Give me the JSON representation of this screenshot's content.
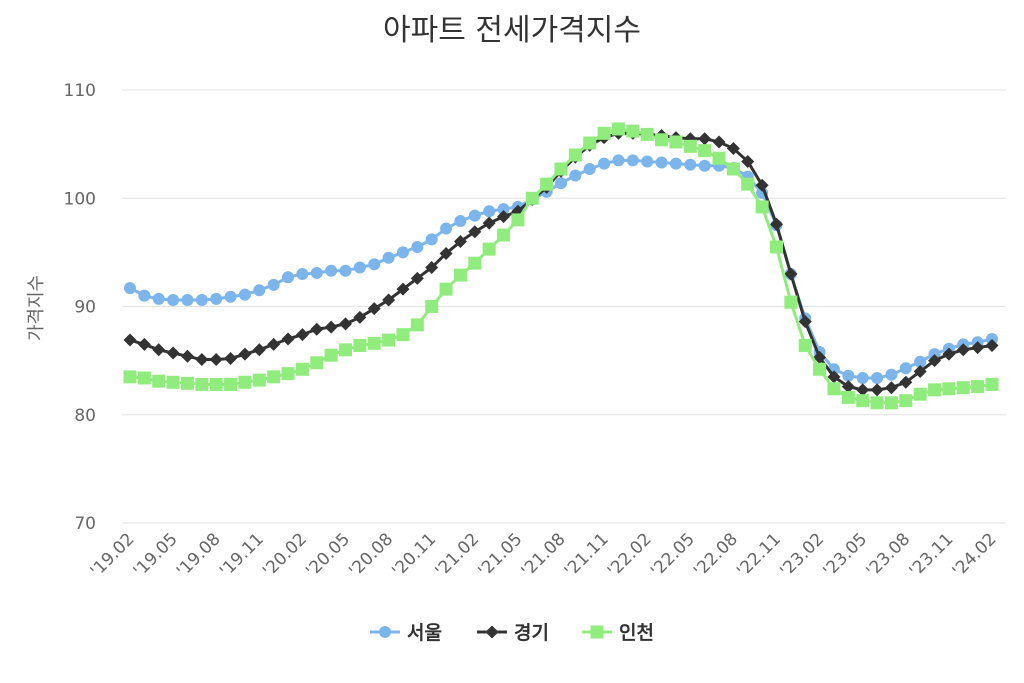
{
  "chart_data": {
    "type": "line",
    "title": "아파트 전세가격지수",
    "ylabel": "가격지수",
    "xlabel": "",
    "ylim": [
      70,
      110
    ],
    "yticks": [
      70,
      80,
      90,
      100,
      110
    ],
    "x": [
      "'19.02",
      "'19.03",
      "'19.04",
      "'19.05",
      "'19.06",
      "'19.07",
      "'19.08",
      "'19.09",
      "'19.10",
      "'19.11",
      "'19.12",
      "'20.01",
      "'20.02",
      "'20.03",
      "'20.04",
      "'20.05",
      "'20.06",
      "'20.07",
      "'20.08",
      "'20.09",
      "'20.10",
      "'20.11",
      "'20.12",
      "'21.01",
      "'21.02",
      "'21.03",
      "'21.04",
      "'21.05",
      "'21.06",
      "'21.07",
      "'21.08",
      "'21.09",
      "'21.10",
      "'21.11",
      "'21.12",
      "'22.01",
      "'22.02",
      "'22.03",
      "'22.04",
      "'22.05",
      "'22.06",
      "'22.07",
      "'22.08",
      "'22.09",
      "'22.10",
      "'22.11",
      "'22.12",
      "'23.01",
      "'23.02",
      "'23.03",
      "'23.04",
      "'23.05",
      "'23.06",
      "'23.07",
      "'23.08",
      "'23.09",
      "'23.10",
      "'23.11",
      "'23.12",
      "'24.01",
      "'24.02"
    ],
    "xtick_labels": [
      "'19.02",
      "'19.05",
      "'19.08",
      "'19.11",
      "'20.02",
      "'20.05",
      "'20.08",
      "'20.11",
      "'21.02",
      "'21.05",
      "'21.08",
      "'21.11",
      "'22.02",
      "'22.05",
      "'22.08",
      "'22.11",
      "'23.02",
      "'23.05",
      "'23.08",
      "'23.11",
      "'24.02"
    ],
    "grid": true,
    "legend_position": "bottom",
    "series": [
      {
        "name": "서울",
        "color": "#7cb5ec",
        "marker": "circle",
        "values": [
          91.7,
          91.0,
          90.7,
          90.6,
          90.6,
          90.6,
          90.7,
          90.9,
          91.1,
          91.5,
          92.0,
          92.7,
          93.0,
          93.1,
          93.3,
          93.3,
          93.6,
          93.9,
          94.5,
          95.0,
          95.5,
          96.2,
          97.2,
          97.9,
          98.4,
          98.8,
          99.0,
          99.2,
          99.9,
          100.6,
          101.4,
          102.1,
          102.7,
          103.2,
          103.5,
          103.5,
          103.4,
          103.3,
          103.2,
          103.1,
          103.0,
          103.0,
          102.8,
          102.0,
          100.5,
          97.5,
          93.0,
          88.9,
          85.8,
          84.2,
          83.6,
          83.4,
          83.4,
          83.7,
          84.3,
          84.9,
          85.6,
          86.1,
          86.5,
          86.7,
          87.0
        ]
      },
      {
        "name": "경기",
        "color": "#333333",
        "marker": "diamond",
        "values": [
          86.9,
          86.5,
          86.0,
          85.7,
          85.4,
          85.1,
          85.1,
          85.2,
          85.6,
          86.0,
          86.5,
          87.0,
          87.4,
          87.9,
          88.1,
          88.4,
          89.0,
          89.8,
          90.6,
          91.6,
          92.6,
          93.6,
          94.9,
          96.0,
          96.9,
          97.7,
          98.3,
          98.8,
          99.9,
          101.0,
          102.5,
          103.8,
          104.9,
          105.6,
          106.0,
          106.0,
          105.9,
          105.8,
          105.6,
          105.5,
          105.5,
          105.2,
          104.6,
          103.4,
          101.2,
          97.6,
          93.0,
          88.6,
          85.3,
          83.5,
          82.6,
          82.3,
          82.3,
          82.5,
          83.0,
          84.0,
          85.0,
          85.6,
          86.0,
          86.2,
          86.4
        ]
      },
      {
        "name": "인천",
        "color": "#90ed7d",
        "marker": "square",
        "values": [
          83.5,
          83.4,
          83.1,
          83.0,
          82.9,
          82.8,
          82.8,
          82.8,
          83.0,
          83.2,
          83.5,
          83.8,
          84.2,
          84.8,
          85.5,
          86.0,
          86.4,
          86.6,
          86.9,
          87.4,
          88.3,
          90.0,
          91.6,
          92.9,
          94.0,
          95.3,
          96.6,
          98.0,
          100.0,
          101.3,
          102.7,
          104.0,
          105.1,
          106.0,
          106.4,
          106.2,
          105.9,
          105.4,
          105.2,
          104.8,
          104.4,
          103.7,
          102.7,
          101.3,
          99.2,
          95.5,
          90.4,
          86.4,
          84.2,
          82.4,
          81.6,
          81.3,
          81.1,
          81.1,
          81.3,
          81.9,
          82.3,
          82.4,
          82.5,
          82.6,
          82.8
        ]
      }
    ]
  }
}
